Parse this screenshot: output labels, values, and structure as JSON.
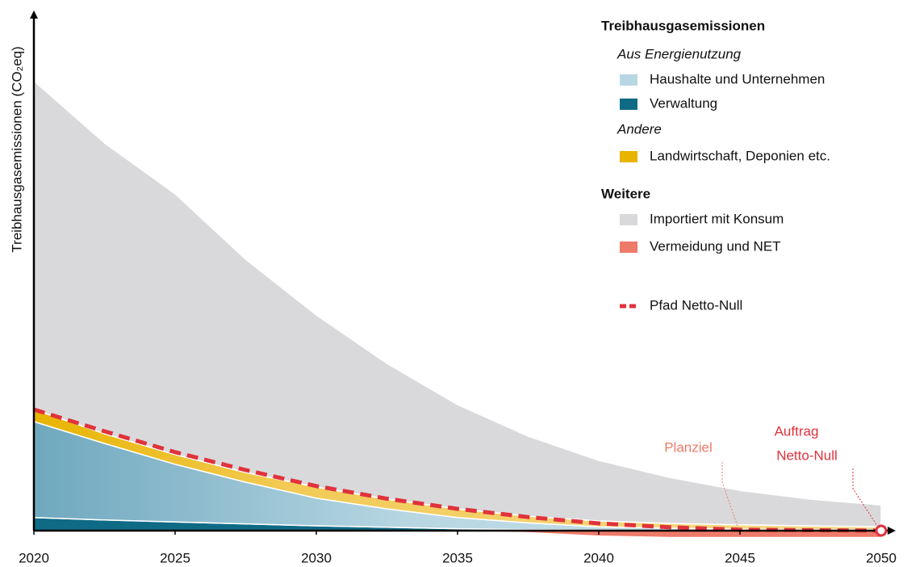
{
  "chart_data": {
    "type": "stacked_area",
    "y_label": "Treibhausgasemissionen (CO₂eq)",
    "x": [
      2020,
      2022.5,
      2025,
      2027.5,
      2030,
      2032.5,
      2035,
      2037.5,
      2040,
      2042.5,
      2045,
      2047.5,
      2050
    ],
    "xlim": [
      2020,
      2050
    ],
    "xticks": [
      2020,
      2025,
      2030,
      2035,
      2040,
      2045,
      2050
    ],
    "ylim": [
      0,
      107
    ],
    "legend_labels": [
      "Treibhausgasemissionen",
      "Aus Energienutzung",
      "Andere",
      "Weitere"
    ],
    "series": [
      {
        "name": "Verwaltung",
        "kind": "area",
        "color": "#0f6a86",
        "values": [
          2.7,
          2.2,
          1.8,
          1.4,
          1.0,
          0.7,
          0.4,
          0.2,
          0.1,
          0,
          0,
          0,
          0
        ]
      },
      {
        "name": "Haushalte und Unternehmen",
        "kind": "area",
        "color": "#b8d7e3",
        "values": [
          19.8,
          15.8,
          11.9,
          8.6,
          5.7,
          3.8,
          2.3,
          1.4,
          0.7,
          0.5,
          0.3,
          0.2,
          0.2
        ]
      },
      {
        "name": "Landwirtschaft, Deponien etc.",
        "kind": "area",
        "color": "#e8b400",
        "values": [
          2.5,
          2,
          2,
          2,
          2.3,
          2,
          1.8,
          1.4,
          1.2,
          1,
          0.9,
          0.8,
          0.6
        ]
      },
      {
        "name": "Importiert mit Konsum",
        "kind": "area",
        "color": "#d9d9db",
        "values": [
          67.8,
          60,
          53.8,
          44,
          35.5,
          28,
          21.5,
          16.5,
          12.5,
          9.5,
          7.1,
          5.5,
          4.5
        ]
      },
      {
        "name": "Vermeidung und NET",
        "kind": "area",
        "color": "#ee7a6a",
        "values": [
          0,
          0,
          0,
          0,
          0,
          0,
          0,
          -0.3,
          -1,
          -1.3,
          -1.3,
          -1.3,
          -1.3
        ]
      },
      {
        "name": "Pfad Netto-Null",
        "kind": "line",
        "dashed": true,
        "color": "#e0323c",
        "values": [
          25,
          20.5,
          16.2,
          12.5,
          9.2,
          6.6,
          4.5,
          2.8,
          1.5,
          0.7,
          0.2,
          0.1,
          0
        ]
      }
    ],
    "annotations": [
      {
        "text": "Planziel",
        "x": 2045,
        "color": "#ee7a6a"
      },
      {
        "text": "Auftrag",
        "x": 2050,
        "color": "#e0323c"
      },
      {
        "text": "Netto-Null",
        "x": 2050,
        "color": "#e0323c"
      }
    ]
  }
}
